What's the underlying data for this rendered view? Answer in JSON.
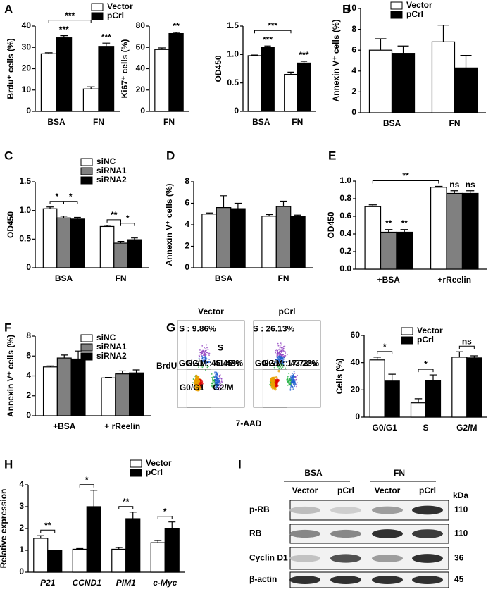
{
  "panels": [
    "A",
    "B",
    "C",
    "D",
    "E",
    "F",
    "G",
    "H",
    "I"
  ],
  "chart_data": [
    {
      "type": "bar",
      "ylabel": "Brdu⁺ cells (%)",
      "categories": [
        "BSA",
        "FN"
      ],
      "series": [
        {
          "name": "Vector",
          "color": "#ffffff",
          "values": [
            27,
            10.5
          ],
          "errors": [
            0.5,
            1
          ]
        },
        {
          "name": "pCrl",
          "color": "#000000",
          "values": [
            34.5,
            30.5
          ],
          "errors": [
            1,
            1.5
          ]
        }
      ],
      "ylim": [
        0,
        40
      ],
      "yticks": [
        0,
        10,
        20,
        30,
        40
      ],
      "annotations": [
        {
          "text": "***",
          "at": [
            1,
            0
          ]
        },
        {
          "text": "***",
          "at": [
            1,
            1
          ]
        }
      ],
      "brackets": [
        {
          "text": "***",
          "from": [
            0,
            0
          ],
          "to": [
            0,
            1
          ]
        }
      ]
    },
    {
      "type": "bar",
      "ylabel": "Ki67⁺ cells (%)",
      "categories": [
        "FN"
      ],
      "series": [
        {
          "color": "#ffffff",
          "values": [
            58
          ],
          "errors": [
            1.5
          ]
        },
        {
          "color": "#000000",
          "values": [
            73
          ],
          "errors": [
            1
          ]
        }
      ],
      "ylim": [
        0,
        80
      ],
      "yticks": [
        0,
        20,
        40,
        60,
        80
      ],
      "annotations": [
        {
          "text": "**",
          "at": [
            1,
            0
          ]
        }
      ],
      "brackets": []
    },
    {
      "type": "bar",
      "ylabel": "OD450",
      "categories": [
        "BSA",
        "FN"
      ],
      "series": [
        {
          "color": "#ffffff",
          "values": [
            0.98,
            0.65
          ],
          "errors": [
            0.01,
            0.04
          ]
        },
        {
          "color": "#000000",
          "values": [
            1.13,
            0.85
          ],
          "errors": [
            0.02,
            0.03
          ]
        }
      ],
      "ylim": [
        0,
        1.5
      ],
      "yticks": [
        0,
        0.5,
        {
          "value": 1,
          "label": "1.0"
        },
        1.5
      ],
      "annotations": [
        {
          "text": "***",
          "at": [
            1,
            0
          ]
        },
        {
          "text": "***",
          "at": [
            1,
            1
          ]
        }
      ],
      "brackets": [
        {
          "text": "***",
          "from": [
            0,
            0
          ],
          "to": [
            0,
            1
          ]
        }
      ]
    },
    {
      "type": "bar",
      "ylabel": "Annexin V⁺ cells (%)",
      "categories": [
        "BSA",
        "FN"
      ],
      "series": [
        {
          "name": "Vector",
          "color": "#ffffff",
          "values": [
            6,
            6.8
          ],
          "errors": [
            1.1,
            1.6
          ]
        },
        {
          "name": "pCrl",
          "color": "#000000",
          "values": [
            5.7,
            4.3
          ],
          "errors": [
            0.7,
            1.2
          ]
        }
      ],
      "ylim": [
        0,
        10
      ],
      "yticks": [
        0,
        2,
        4,
        6,
        8,
        10
      ],
      "annotations": [],
      "brackets": []
    },
    {
      "type": "bar",
      "ylabel": "OD450",
      "categories": [
        "BSA",
        "FN"
      ],
      "series": [
        {
          "name": "siNC",
          "color": "#ffffff",
          "values": [
            1.03,
            0.72
          ],
          "errors": [
            0.03,
            0.02
          ]
        },
        {
          "name": "siRNA1",
          "color": "#808080",
          "values": [
            0.87,
            0.43
          ],
          "errors": [
            0.03,
            0.03
          ]
        },
        {
          "name": "siRNA2",
          "color": "#000000",
          "values": [
            0.85,
            0.49
          ],
          "errors": [
            0.03,
            0.03
          ]
        }
      ],
      "ylim": [
        0,
        1.5
      ],
      "yticks": [
        0,
        0.5,
        {
          "value": 1,
          "label": "1.0"
        },
        1.5
      ],
      "annotations": [],
      "brackets": [
        {
          "text": "*",
          "from": [
            0,
            0
          ],
          "to": [
            1,
            0
          ]
        },
        {
          "text": "*",
          "from": [
            1,
            0
          ],
          "to": [
            2,
            0
          ]
        },
        {
          "text": "**",
          "from": [
            0,
            1
          ],
          "to": [
            1,
            1
          ]
        },
        {
          "text": "*",
          "from": [
            1,
            1
          ],
          "to": [
            2,
            1
          ]
        }
      ]
    },
    {
      "type": "bar",
      "ylabel": "Annexin V⁺ cells (%)",
      "categories": [
        "BSA",
        "FN"
      ],
      "series": [
        {
          "color": "#ffffff",
          "values": [
            5.0,
            4.8
          ],
          "errors": [
            0.1,
            0.15
          ]
        },
        {
          "color": "#808080",
          "values": [
            5.6,
            5.7
          ],
          "errors": [
            1.1,
            0.5
          ]
        },
        {
          "color": "#000000",
          "values": [
            5.5,
            4.8
          ],
          "errors": [
            0.5,
            0.1
          ]
        }
      ],
      "ylim": [
        0,
        8
      ],
      "yticks": [
        0,
        2,
        4,
        6,
        8
      ],
      "annotations": [],
      "brackets": []
    },
    {
      "type": "bar",
      "ylabel": "OD450",
      "categories": [
        "+BSA",
        "+rReelin"
      ],
      "series": [
        {
          "color": "#ffffff",
          "values": [
            0.71,
            0.93
          ],
          "errors": [
            0.02,
            0.01
          ]
        },
        {
          "color": "#808080",
          "values": [
            0.42,
            0.86
          ],
          "errors": [
            0.03,
            0.03
          ]
        },
        {
          "color": "#000000",
          "values": [
            0.42,
            0.86
          ],
          "errors": [
            0.03,
            0.03
          ]
        }
      ],
      "ylim": [
        0,
        1
      ],
      "yticks": [
        {
          "value": 0,
          "label": "0.0"
        },
        0.2,
        0.4,
        0.6,
        0.8,
        {
          "value": 1,
          "label": "1.0"
        }
      ],
      "annotations": [
        {
          "text": "**",
          "at": [
            1,
            0
          ]
        },
        {
          "text": "**",
          "at": [
            2,
            0
          ]
        },
        {
          "text": "ns",
          "at": [
            1,
            1
          ]
        },
        {
          "text": "ns",
          "at": [
            2,
            1
          ]
        }
      ],
      "brackets": [
        {
          "text": "**",
          "from": [
            0,
            0
          ],
          "to": [
            0,
            1
          ]
        }
      ]
    },
    {
      "type": "bar",
      "ylabel": "Annexin V⁺ cells (%)",
      "categories": [
        "+BSA",
        "+ rReelin"
      ],
      "series": [
        {
          "name": "siNC",
          "color": "#ffffff",
          "values": [
            4.9,
            3.8
          ],
          "errors": [
            0.1,
            0.05
          ]
        },
        {
          "name": "siRNA1",
          "color": "#808080",
          "values": [
            5.8,
            4.2
          ],
          "errors": [
            0.3,
            0.3
          ]
        },
        {
          "name": "siRNA2",
          "color": "#000000",
          "values": [
            5.7,
            4.3
          ],
          "errors": [
            0.8,
            0.3
          ]
        }
      ],
      "ylim": [
        0,
        8
      ],
      "yticks": [
        0,
        2,
        4,
        6,
        8
      ],
      "annotations": [],
      "brackets": []
    },
    {
      "type": "bar",
      "ylabel": "Cells (%)",
      "categories": [
        "G0/G1",
        "S",
        "G2/M"
      ],
      "series": [
        {
          "name": "Vector",
          "color": "#ffffff",
          "values": [
            42,
            10.5,
            44
          ],
          "errors": [
            2,
            3,
            4
          ]
        },
        {
          "name": "pCrl",
          "color": "#000000",
          "values": [
            26.5,
            27,
            43.5
          ],
          "errors": [
            5,
            4,
            1.5
          ]
        }
      ],
      "ylim": [
        0,
        60
      ],
      "yticks": [
        0,
        20,
        40,
        60
      ],
      "annotations": [],
      "brackets": [
        {
          "text": "*",
          "from": [
            0,
            0
          ],
          "to": [
            1,
            0
          ]
        },
        {
          "text": "*",
          "from": [
            0,
            1
          ],
          "to": [
            1,
            1
          ]
        },
        {
          "text": "ns",
          "from": [
            0,
            2
          ],
          "to": [
            1,
            2
          ]
        }
      ]
    },
    {
      "type": "bar",
      "ylabel": "Relative expression",
      "categories": [
        "P21",
        "CCND1",
        "PIM1",
        "c-Myc"
      ],
      "series": [
        {
          "name": "Vector",
          "color": "#ffffff",
          "values": [
            1.55,
            1.05,
            1.05,
            1.35
          ],
          "errors": [
            0.12,
            0.03,
            0.08,
            0.1
          ]
        },
        {
          "name": "pCrl",
          "color": "#000000",
          "values": [
            1.0,
            3.0,
            2.45,
            2.0
          ],
          "errors": [
            0,
            0.75,
            0.3,
            0.3
          ]
        }
      ],
      "ylim": [
        0,
        4
      ],
      "yticks": [
        0,
        1,
        2,
        3,
        4
      ],
      "annotations": [],
      "brackets": [
        {
          "text": "**",
          "from": [
            0,
            0
          ],
          "to": [
            1,
            0
          ]
        },
        {
          "text": "*",
          "from": [
            0,
            1
          ],
          "to": [
            1,
            1
          ]
        },
        {
          "text": "**",
          "from": [
            0,
            2
          ],
          "to": [
            1,
            2
          ]
        },
        {
          "text": "*",
          "from": [
            0,
            3
          ],
          "to": [
            1,
            3
          ]
        }
      ]
    }
  ],
  "flow_cytometry": {
    "y_label": "BrdU",
    "x_label": "7-AAD",
    "quadrants": [
      "S",
      "G0/G1",
      "G2/M"
    ],
    "plots": [
      {
        "title": "Vector",
        "gates": [
          "S : 9.86%",
          "G0/G1 : 45.45%",
          "G2/M : 41.48%"
        ]
      },
      {
        "title": "pCrl",
        "gates": [
          "S : 26.13%",
          "G0/G1 : 17.73%",
          "G2/M : 43.22%"
        ]
      }
    ]
  },
  "western_blot": {
    "groups": [
      "BSA",
      "FN"
    ],
    "lanes": [
      "Vector",
      "pCrl",
      "Vector",
      "pCrl"
    ],
    "unit": "kDa",
    "rows": [
      {
        "label": "p-RB",
        "size": 110
      },
      {
        "label": "RB",
        "size": 110
      },
      {
        "label": "Cyclin D1",
        "size": 36
      },
      {
        "label": "β-actin",
        "size": 45
      }
    ]
  }
}
